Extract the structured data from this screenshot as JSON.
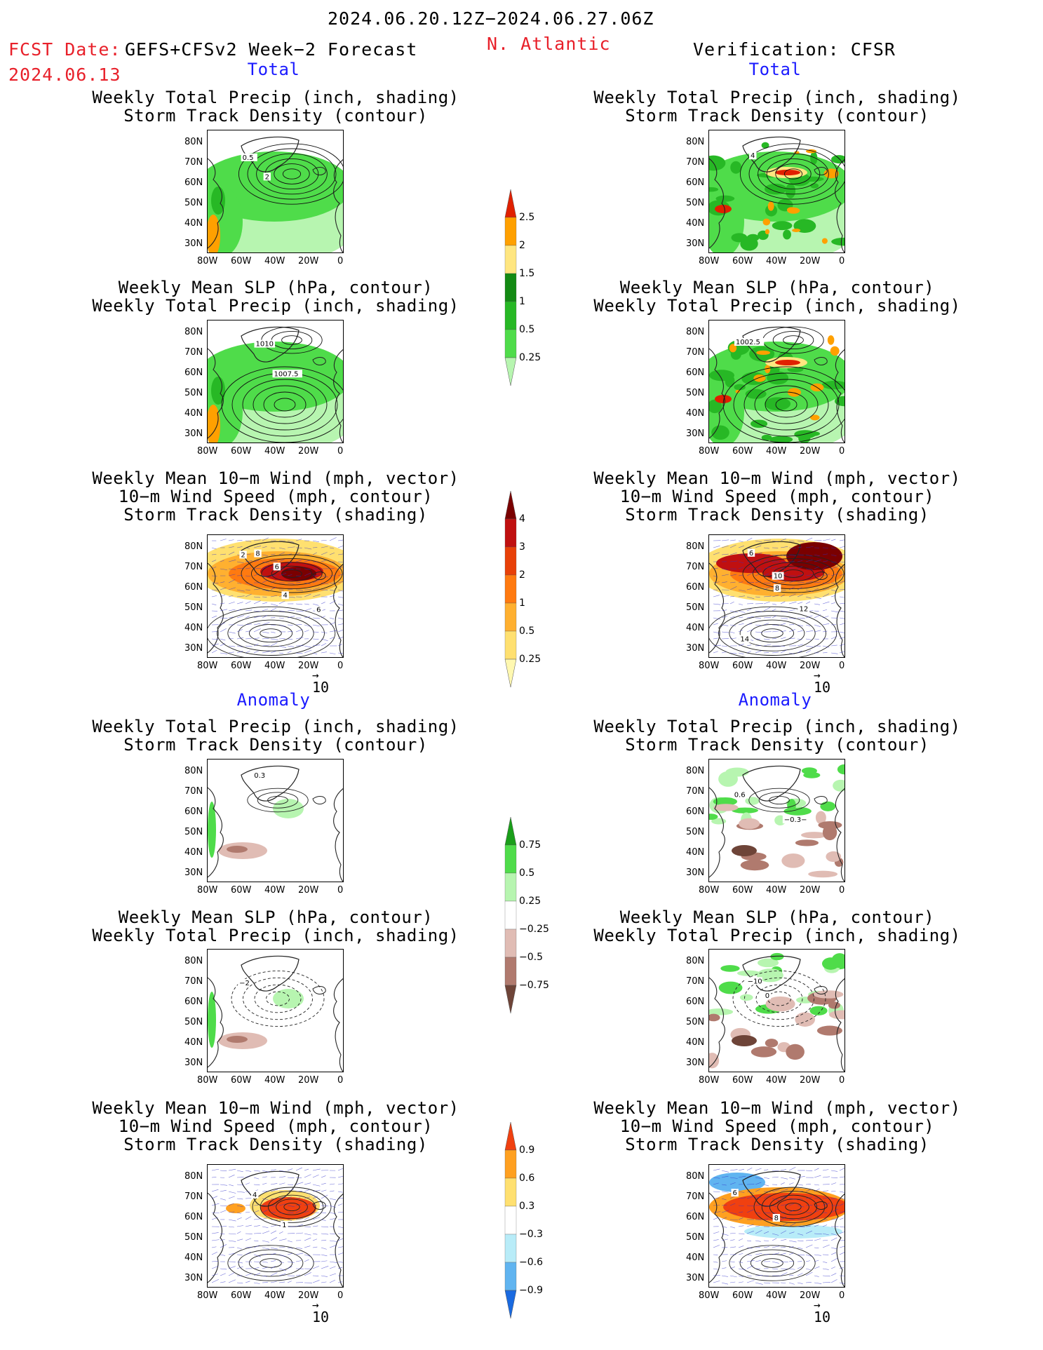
{
  "header": {
    "period": "2024.06.20.12Z−2024.06.27.06Z",
    "fcst_date_label": "FCST Date:",
    "fcst_source": "GEFS+CFSv2 Week−2 Forecast",
    "fcst_date": "2024.06.13",
    "region": "N. Atlantic",
    "verification": "Verification: CFSR"
  },
  "sections": {
    "total": "Total",
    "anomaly": "Anomaly"
  },
  "titles": {
    "precip_track": [
      "Weekly Total Precip (inch, shading)",
      "Storm Track Density (contour)"
    ],
    "slp_precip": [
      "Weekly Mean SLP (hPa, contour)",
      "Weekly Total Precip (inch, shading)"
    ],
    "wind_track": [
      "Weekly Mean 10−m Wind (mph, vector)",
      "10−m Wind Speed (mph, contour)",
      "Storm Track Density (shading)"
    ]
  },
  "axes": {
    "lat_ticks": [
      "80N",
      "70N",
      "60N",
      "50N",
      "40N",
      "30N"
    ],
    "lon_ticks": [
      "80W",
      "60W",
      "40W",
      "20W",
      "0"
    ]
  },
  "vector_ref": "10",
  "panel_labels": {
    "fc_total_precip": [
      "0.5",
      "2"
    ],
    "vf_total_precip": [
      "4"
    ],
    "fc_total_slp": [
      "1010",
      "1007.5"
    ],
    "vf_total_slp": [
      "1002.5"
    ],
    "fc_total_wind": [
      "2",
      "4",
      "6",
      "8",
      "6"
    ],
    "vf_total_wind": [
      "6",
      "8",
      "12",
      "14",
      "10"
    ],
    "fc_anom_precip": [
      "0.3"
    ],
    "vf_anom_precip": [
      "0.6",
      "−0.3−"
    ],
    "fc_anom_slp": [
      "−2"
    ],
    "vf_anom_slp": [
      "−10",
      "0"
    ],
    "fc_anom_wind": [
      "4",
      "1"
    ],
    "vf_anom_wind": [
      "6",
      "8"
    ]
  },
  "colorbars": {
    "precip_total": [
      "2.5",
      "2",
      "1.5",
      "1",
      "0.5",
      "0.25"
    ],
    "track_total": [
      "4",
      "3",
      "2",
      "1",
      "0.5",
      "0.25"
    ],
    "precip_anom": [
      "0.75",
      "0.5",
      "0.25",
      "−0.25",
      "−0.5",
      "−0.75"
    ],
    "track_anom": [
      "0.9",
      "0.6",
      "0.3",
      "−0.3",
      "−0.6",
      "−0.9"
    ]
  },
  "colors": {
    "precip_scale": [
      "#ffffff",
      "#b7f5b0",
      "#4fdc4a",
      "#27b825",
      "#138a13",
      "#ffe680",
      "#ffa000",
      "#e02000"
    ],
    "track_scale": [
      "#fff8b0",
      "#ffe070",
      "#ffb030",
      "#ff7a10",
      "#e84008",
      "#c01010",
      "#7a0000"
    ],
    "anom_precip_pos": [
      "#b7f5b0",
      "#4fdc4a",
      "#1a9e1a"
    ],
    "anom_precip_neg": [
      "#e0bcb4",
      "#b07a6e",
      "#6e4438"
    ],
    "anom_track_pos": [
      "#ffe070",
      "#ffa020",
      "#f04010"
    ],
    "anom_track_neg": [
      "#b8ecf8",
      "#60b4f0",
      "#1a6ae0"
    ],
    "header_red": "#e8202a",
    "header_blue": "#1a1aff"
  }
}
